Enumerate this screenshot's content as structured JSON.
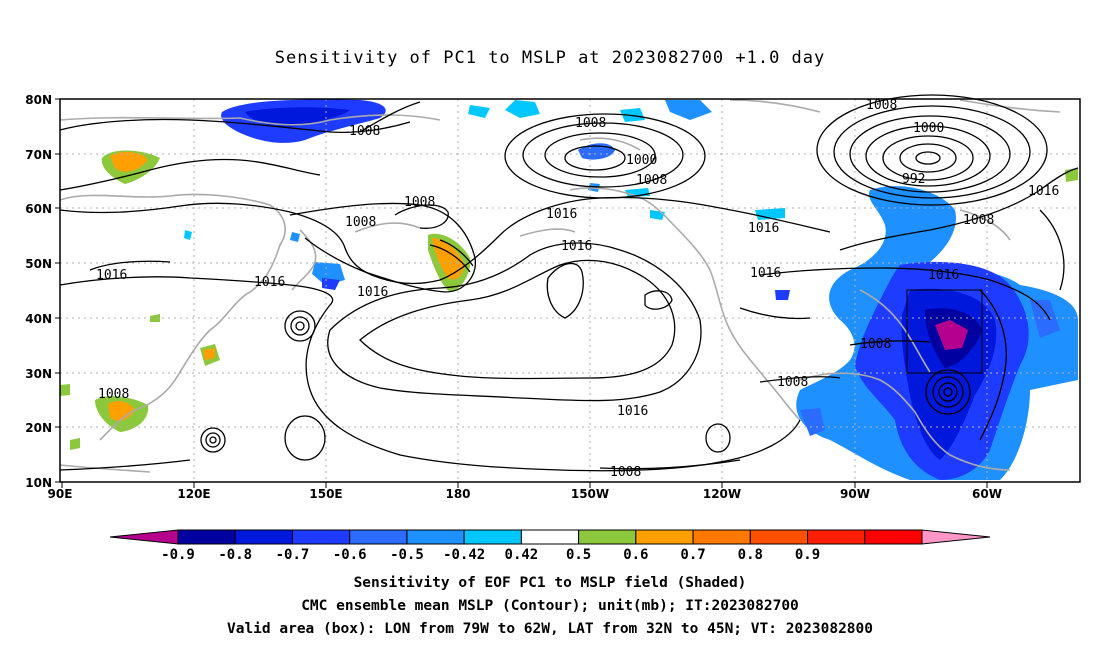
{
  "title": "Sensitivity of PC1 to MSLP at 2023082700 +1.0 day",
  "axes": {
    "x_ticks": [
      "90E",
      "120E",
      "150E",
      "180",
      "150W",
      "120W",
      "90W",
      "60W"
    ],
    "y_ticks": [
      "80N",
      "70N",
      "60N",
      "50N",
      "40N",
      "30N",
      "20N",
      "10N"
    ]
  },
  "colorbar": {
    "labels": [
      "-0.9",
      "-0.8",
      "-0.7",
      "-0.6",
      "-0.5",
      "-0.42",
      "0.42",
      "0.5",
      "0.6",
      "0.7",
      "0.8",
      "0.9"
    ],
    "colors": [
      "#b4008c",
      "#0000a0",
      "#0018dc",
      "#1e3cff",
      "#2b6cff",
      "#1e90ff",
      "#00c8ff",
      "#ffffff",
      "#8cc83c",
      "#ffa000",
      "#ff7800",
      "#ff5000",
      "#ff1e00",
      "#ff0000",
      "#ff96c8"
    ]
  },
  "contour_labels": [
    "1008",
    "1008",
    "1008",
    "1008",
    "1008",
    "1008",
    "1008",
    "1000",
    "1000",
    "992",
    "1016",
    "1016",
    "1016",
    "1016",
    "1016",
    "1016",
    "1016",
    "1016",
    "1016"
  ],
  "valid_box": {
    "lon_from": "79W",
    "lon_to": "62W",
    "lat_from": "32N",
    "lat_to": "45N"
  },
  "captions": {
    "line1": "Sensitivity of EOF PC1 to MSLP field (Shaded)",
    "line2": "CMC ensemble mean MSLP (Contour); unit(mb); IT:2023082700",
    "line3": "Valid area (box): LON from 79W to 62W, LAT from 32N to 45N; VT: 2023082800"
  }
}
